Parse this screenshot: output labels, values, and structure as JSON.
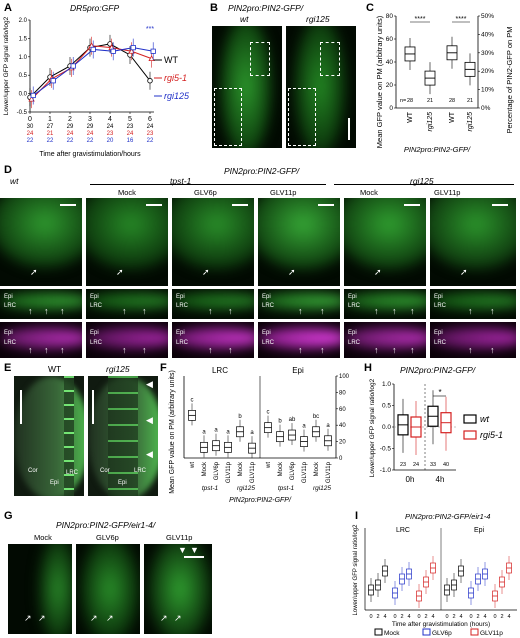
{
  "panels": {
    "A": {
      "letter": "A",
      "title": "DR5pro:GFP",
      "ylabel": "Lower/upper GFP signal ratio/log2",
      "xlabel": "Time after gravistimulation/hours",
      "legend": [
        "WT",
        "rgi5-1",
        "rgi125"
      ],
      "sig": "***",
      "n_rows": [
        [
          "30",
          "27",
          "29",
          "29",
          "24",
          "23",
          "24"
        ],
        [
          "24",
          "21",
          "24",
          "24",
          "23",
          "24",
          "23"
        ],
        [
          "22",
          "22",
          "22",
          "22",
          "20",
          "16",
          "22"
        ]
      ]
    },
    "B": {
      "letter": "B",
      "title": "PIN2pro:PIN2-GFP/",
      "labels": [
        "wt",
        "rgi125"
      ]
    },
    "C": {
      "letter": "C",
      "ylabel_left": "Mean GFP value on PM (arbitrary units)",
      "ylabel_right": "Percentage of PIN2-GFP on PM",
      "xlabel": "PIN2pro:PIN2-GFP/",
      "cats": [
        "WT",
        "rgi125",
        "WT",
        "rgi125"
      ],
      "n": [
        "28",
        "21",
        "28",
        "21"
      ],
      "sig": [
        "****",
        "****"
      ],
      "ns_label": "n="
    },
    "D": {
      "letter": "D",
      "title": "PIN2pro:PIN2-GFP/",
      "groups": [
        "wt",
        "tpst-1",
        "rgi125"
      ],
      "cols": [
        "",
        "Mock",
        "GLV6p",
        "GLV11p",
        "Mock",
        "GLV11p"
      ],
      "epi": "Epi",
      "lrc": "LRC"
    },
    "E": {
      "letter": "E",
      "labels": [
        "WT",
        "rgi125"
      ],
      "tissues": [
        "Cor",
        "Epi",
        "LRC",
        "Cor",
        "Epi",
        "LRC"
      ]
    },
    "F": {
      "letter": "F",
      "ylabel": "Mean GFP value on PM (arbitrary units)",
      "sections": [
        "LRC",
        "Epi"
      ],
      "cats": [
        "wt",
        "Mock",
        "GLV6p",
        "GLV11p",
        "Mock",
        "GLV11p",
        "wt",
        "Mock",
        "GLV6p",
        "GLV11p",
        "Mock",
        "GLV11p"
      ],
      "groups": [
        "tpst-1",
        "rgi125",
        "tpst-1",
        "rgi125"
      ],
      "xlabel": "PIN2pro:PIN2-GFP/",
      "letters": [
        "c",
        "a",
        "a",
        "a",
        "b",
        "a",
        "c",
        "b",
        "ab",
        "a",
        "bc",
        "a"
      ]
    },
    "G": {
      "letter": "G",
      "title": "PIN2pro:PIN2-GFP/eir1-4/",
      "cols": [
        "Mock",
        "GLV6p",
        "GLV11p"
      ]
    },
    "H": {
      "letter": "H",
      "title": "PIN2pro:PIN2-GFP/",
      "ylabel": "Lower/upper GFP signal ratio/log2",
      "cats": [
        "0h",
        "4h"
      ],
      "legend": [
        "wt",
        "rgi5-1"
      ],
      "n": [
        "23",
        "24",
        "33",
        "40"
      ],
      "sig": "*"
    },
    "I": {
      "letter": "I",
      "title": "PIN2pro:PIN2-GFP/eir1-4",
      "sections": [
        "LRC",
        "Epi"
      ],
      "ylabel": "Lower/upper GFP signal ratio/log2",
      "xlabel": "Time after gravistimulation (hours)",
      "legend": [
        "Mock",
        "GLV6p",
        "GLV11p"
      ],
      "ticks": [
        "0",
        "2",
        "4"
      ]
    }
  },
  "chart_data": [
    {
      "type": "line",
      "panel": "A",
      "x": [
        0,
        1,
        2,
        3,
        4,
        5,
        6
      ],
      "xlabel": "Time after gravistimulation/hours",
      "ylabel": "Lower/upper GFP signal ratio/log2",
      "ylim": [
        -0.5,
        2.0
      ],
      "series": [
        {
          "name": "WT",
          "values": [
            -0.1,
            0.45,
            0.75,
            1.25,
            1.35,
            1.05,
            0.35
          ]
        },
        {
          "name": "rgi5-1",
          "values": [
            -0.15,
            0.4,
            0.7,
            1.3,
            1.25,
            1.15,
            0.95
          ]
        },
        {
          "name": "rgi125",
          "values": [
            -0.05,
            0.35,
            0.75,
            1.2,
            1.15,
            1.25,
            1.15
          ]
        }
      ]
    },
    {
      "type": "box",
      "panel": "C",
      "categories": [
        "WT",
        "rgi125",
        "WT",
        "rgi125"
      ],
      "medians_left": [
        47,
        26
      ],
      "medians_right_pct": [
        30,
        21
      ],
      "ylim_left": [
        0,
        80
      ],
      "ylim_right": [
        0,
        50
      ]
    },
    {
      "type": "box",
      "panel": "F",
      "categories": [
        "wt",
        "Mock",
        "GLV6p",
        "GLV11p",
        "Mock",
        "GLV11p",
        "wt",
        "Mock",
        "GLV6p",
        "GLV11p",
        "Mock",
        "GLV11p"
      ],
      "medians": [
        52,
        13,
        15,
        13,
        32,
        12,
        37,
        26,
        28,
        20,
        32,
        21
      ],
      "ylim": [
        0,
        100
      ]
    },
    {
      "type": "box",
      "panel": "H",
      "categories": [
        "0h",
        "4h"
      ],
      "series": [
        {
          "name": "wt",
          "values": [
            0.05,
            0.25
          ]
        },
        {
          "name": "rgi5-1",
          "values": [
            0.0,
            0.1
          ]
        }
      ],
      "ylim": [
        -1.0,
        1.0
      ]
    }
  ]
}
